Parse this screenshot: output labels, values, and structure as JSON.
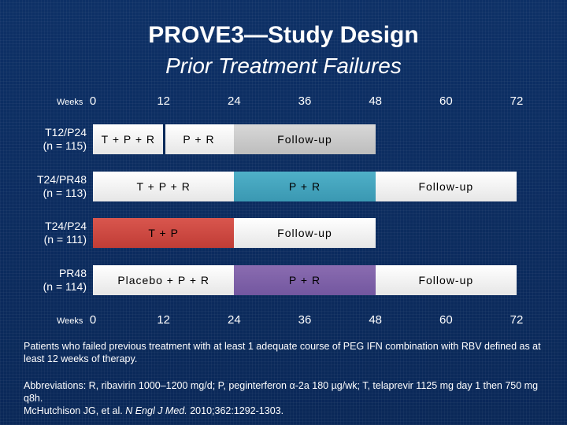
{
  "slide": {
    "title": "PROVE3—Study Design",
    "subtitle": "Prior Treatment Failures"
  },
  "axis": {
    "weeks_label": "Weeks",
    "ticks": [
      "0",
      "12",
      "24",
      "36",
      "48",
      "60",
      "72"
    ]
  },
  "arms": [
    {
      "name": "T12/P24",
      "n": "(n = 115)",
      "segments": [
        {
          "label": "T + P + R",
          "start": 0,
          "end": 12,
          "color": "white"
        },
        {
          "label": "P + R",
          "start": 12,
          "end": 24,
          "color": "white"
        },
        {
          "label": "Follow-up",
          "start": 24,
          "end": 48,
          "color": "grey"
        }
      ]
    },
    {
      "name": "T24/PR48",
      "n": "(n = 113)",
      "segments": [
        {
          "label": "T + P + R",
          "start": 0,
          "end": 24,
          "color": "white"
        },
        {
          "label": "P + R",
          "start": 24,
          "end": 48,
          "color": "teal"
        },
        {
          "label": "Follow-up",
          "start": 48,
          "end": 72,
          "color": "white"
        }
      ]
    },
    {
      "name": "T24/P24",
      "n": "(n = 111)",
      "segments": [
        {
          "label": "T + P",
          "start": 0,
          "end": 24,
          "color": "red"
        },
        {
          "label": "Follow-up",
          "start": 24,
          "end": 48,
          "color": "white"
        }
      ]
    },
    {
      "name": "PR48",
      "n": "(n = 114)",
      "segments": [
        {
          "label": "Placebo + P + R",
          "start": 0,
          "end": 24,
          "color": "white"
        },
        {
          "label": "P + R",
          "start": 24,
          "end": 48,
          "color": "purple"
        },
        {
          "label": "Follow-up",
          "start": 48,
          "end": 72,
          "color": "white"
        }
      ]
    }
  ],
  "footnotes": {
    "note1": "Patients who failed previous treatment with at least 1 adequate course of PEG IFN combination with RBV defined as at least 12 weeks of therapy.",
    "abbrev_prefix": "Abbreviations: R, ribavirin 1000–1200 mg/d; P, peginterferon ",
    "alpha": "α",
    "abbrev_suffix": "-2a 180 µg/wk; T, telaprevir 1125 mg day 1 then 750 mg q8h.",
    "cite_authors": "McHutchison JG, et al. ",
    "cite_journal": "N Engl J Med.",
    "cite_rest": " 2010;362:1292-1303."
  }
}
